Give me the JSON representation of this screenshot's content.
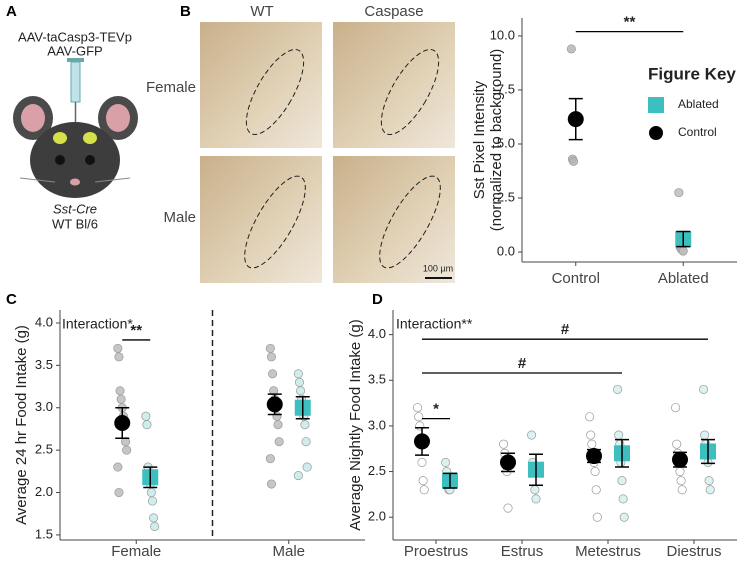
{
  "panel_a": {
    "label": "A",
    "vectors": [
      "AAV-taCasp3-TEVp",
      "AAV-GFP"
    ],
    "strain": [
      "Sst-Cre",
      "WT Bl/6"
    ]
  },
  "panel_b": {
    "label": "B",
    "columns": [
      "WT",
      "Caspase"
    ],
    "rows": [
      "Female",
      "Male"
    ],
    "scale_bar": "100 µm"
  },
  "chart_data": [
    {
      "type": "dot",
      "ylabel": [
        "Sst Pixel Intensity",
        "(normalized to background)"
      ],
      "categories": [
        "Control",
        "Ablated"
      ],
      "ylim": [
        -0.46,
        10.83
      ],
      "yticks": [
        {
          "value": 0,
          "label": "0.0"
        },
        {
          "value": 2.5,
          "label": "2.5"
        },
        {
          "value": 5,
          "label": "5.0"
        },
        {
          "value": 7.5,
          "label": "7.5"
        },
        {
          "value": 10,
          "label": "10.0"
        }
      ],
      "series": [
        {
          "name": "Control",
          "color": "#000000",
          "point_color": "#b5b5b5",
          "marker": "circle",
          "values": [
            6.15,
            null
          ],
          "errors": [
            0.95,
            null
          ],
          "points": [
            [
              9.4,
              4.3,
              4.2
            ],
            null
          ]
        },
        {
          "name": "Ablated",
          "color": "#3dbfbf",
          "point_color": "#bdbdbd",
          "marker": "square",
          "values": [
            null,
            0.6
          ],
          "errors": [
            null,
            0.35
          ],
          "points": [
            null,
            [
              2.75,
              0.25,
              0.15,
              0.1,
              0.05
            ]
          ]
        }
      ],
      "legend": {
        "title": "Figure Key"
      },
      "brackets": [
        {
          "label": "**",
          "y": 10.2,
          "from": "Control",
          "to": "Ablated"
        }
      ]
    },
    {
      "type": "dot",
      "panel_label": "C",
      "annotation": "Interaction*",
      "ylabel": "Average 24 hr Food Intake (g)",
      "categories": [
        "Female",
        "Male"
      ],
      "ylim": [
        1.44,
        4.153
      ],
      "yticks": [
        1.5,
        {
          "value": 2,
          "label": "2.0"
        },
        2.5,
        {
          "value": 3,
          "label": "3.0"
        },
        3.5,
        {
          "value": 4,
          "label": "4.0"
        }
      ],
      "separator": true,
      "series": [
        {
          "name": "Control",
          "color": "#000000",
          "point_color": "#bcbcbc",
          "marker": "circle",
          "values": [
            2.82,
            3.04
          ],
          "errors": [
            0.18,
            0.12
          ],
          "points": [
            [
              3.7,
              3.6,
              3.2,
              3.1,
              3.0,
              2.9,
              2.8,
              2.6,
              2.5,
              2.3,
              2.0
            ],
            [
              3.7,
              3.6,
              3.4,
              3.2,
              3.1,
              3.0,
              2.9,
              2.8,
              2.6,
              2.4,
              2.1
            ]
          ]
        },
        {
          "name": "Ablated",
          "color": "#3dbfbf",
          "point_color": "#c6ebeb",
          "marker": "square",
          "values": [
            2.18,
            3.0
          ],
          "errors": [
            0.12,
            0.13
          ],
          "points": [
            [
              2.9,
              2.8,
              2.3,
              2.2,
              2.1,
              2.0,
              1.9,
              1.7,
              1.6
            ],
            [
              3.4,
              3.3,
              3.2,
              3.1,
              3.0,
              2.9,
              2.8,
              2.6,
              2.3,
              2.2
            ]
          ]
        }
      ],
      "brackets": [
        {
          "label": "**",
          "y": 3.8,
          "from": "Female",
          "to": "Female"
        }
      ]
    },
    {
      "type": "dot",
      "panel_label": "D",
      "annotation": "Interaction**",
      "ylabel": "Average Nightly Food Intake (g)",
      "categories": [
        "Proestrus",
        "Estrus",
        "Metestrus",
        "Diestrus"
      ],
      "ylim": [
        1.75,
        4.27
      ],
      "yticks": [
        {
          "value": 2,
          "label": "2.0"
        },
        2.5,
        {
          "value": 3,
          "label": "3.0"
        },
        3.5,
        {
          "value": 4,
          "label": "4.0"
        }
      ],
      "series": [
        {
          "name": "Control",
          "color": "#000000",
          "point_color": "#ffffff",
          "marker": "circle",
          "values": [
            2.83,
            2.6,
            2.67,
            2.63
          ],
          "errors": [
            0.15,
            0.1,
            0.07,
            0.08
          ],
          "points": [
            [
              3.2,
              3.1,
              3.0,
              2.8,
              2.6,
              2.4,
              2.3
            ],
            [
              2.8,
              2.7,
              2.6,
              2.5,
              2.1
            ],
            [
              3.1,
              2.9,
              2.8,
              2.7,
              2.6,
              2.5,
              2.3,
              2.0
            ],
            [
              3.2,
              2.8,
              2.7,
              2.6,
              2.5,
              2.4,
              2.3
            ]
          ]
        },
        {
          "name": "Ablated",
          "color": "#3dbfbf",
          "point_color": "#d6f0f0",
          "marker": "square",
          "values": [
            2.4,
            2.52,
            2.7,
            2.72
          ],
          "errors": [
            0.08,
            0.17,
            0.15,
            0.13
          ],
          "points": [
            [
              2.6,
              2.5,
              2.4,
              2.3,
              2.3
            ],
            [
              2.9,
              2.6,
              2.5,
              2.3,
              2.2
            ],
            [
              3.4,
              2.9,
              2.8,
              2.6,
              2.4,
              2.2,
              2.0
            ],
            [
              3.4,
              2.9,
              2.8,
              2.7,
              2.6,
              2.4,
              2.3
            ]
          ]
        }
      ],
      "brackets": [
        {
          "label": "*",
          "y": 3.08,
          "from": "Proestrus",
          "to": "Proestrus"
        },
        {
          "label": "#",
          "y": 3.95,
          "from": "Proestrus",
          "to": "Diestrus"
        },
        {
          "label": "#",
          "y": 3.58,
          "from": "Proestrus",
          "to": "Metestrus"
        }
      ]
    }
  ]
}
